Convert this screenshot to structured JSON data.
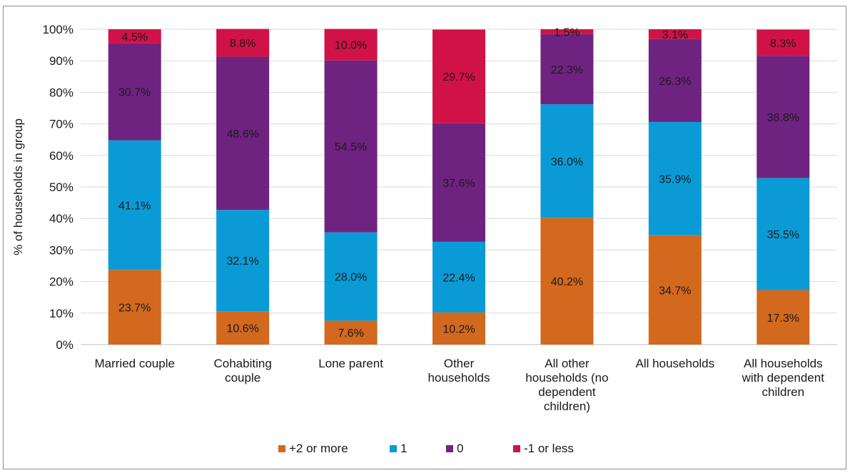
{
  "chart_data": {
    "type": "bar",
    "stacked": true,
    "ylabel": "% of households in group",
    "ylim": [
      0,
      100
    ],
    "yticks": [
      "0%",
      "10%",
      "20%",
      "30%",
      "40%",
      "50%",
      "60%",
      "70%",
      "80%",
      "90%",
      "100%"
    ],
    "grid": true,
    "legend_position": "bottom",
    "categories": [
      [
        "Married couple"
      ],
      [
        "Cohabiting",
        "couple"
      ],
      [
        "Lone parent"
      ],
      [
        "Other",
        "households"
      ],
      [
        "All other",
        "households (no",
        "dependent",
        "children)"
      ],
      [
        "All households"
      ],
      [
        "All households",
        "with dependent",
        "children"
      ]
    ],
    "series": [
      {
        "name": "+2 or more",
        "color": "#D2691E",
        "values": [
          23.7,
          10.6,
          7.6,
          10.2,
          40.2,
          34.7,
          17.3
        ],
        "labels": [
          "23.7%",
          "10.6%",
          "7.6%",
          "10.2%",
          "40.2%",
          "34.7%",
          "17.3%"
        ]
      },
      {
        "name": "1",
        "color": "#0A9BD6",
        "values": [
          41.1,
          32.1,
          28.0,
          22.4,
          36.0,
          35.9,
          35.5
        ],
        "labels": [
          "41.1%",
          "32.1%",
          "28.0%",
          "22.4%",
          "36.0%",
          "35.9%",
          "35.5%"
        ]
      },
      {
        "name": "0",
        "color": "#6F2380",
        "values": [
          30.7,
          48.6,
          54.5,
          37.6,
          22.3,
          26.3,
          38.8
        ],
        "labels": [
          "30.7%",
          "48.6%",
          "54.5%",
          "37.6%",
          "22.3%",
          "26.3%",
          "38.8%"
        ]
      },
      {
        "name": "-1 or less",
        "color": "#D11247",
        "values": [
          4.5,
          8.8,
          10.0,
          29.7,
          1.5,
          3.1,
          8.3
        ],
        "labels": [
          "4.5%",
          "8.8%",
          "10.0%",
          "29.7%",
          "1.5%",
          "3.1%",
          "8.3%"
        ]
      }
    ]
  }
}
